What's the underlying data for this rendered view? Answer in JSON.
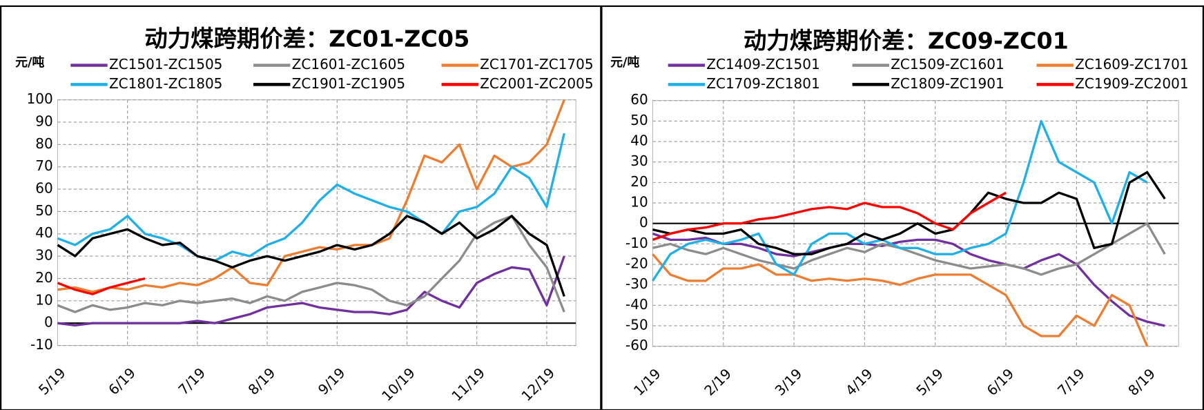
{
  "chart_data": [
    {
      "type": "line",
      "title": "动力煤跨期价差：ZC01-ZC05",
      "y_label": "元/吨",
      "legend": "top",
      "x": [
        "5/19",
        null,
        null,
        null,
        "6/19",
        null,
        null,
        null,
        "7/19",
        null,
        null,
        null,
        "8/19",
        null,
        null,
        null,
        "9/19",
        null,
        null,
        null,
        "10/19",
        null,
        null,
        null,
        "11/19",
        null,
        null,
        null,
        "12/19",
        null
      ],
      "ylim": [
        -10,
        100
      ],
      "yticks": [
        -10,
        0,
        10,
        20,
        30,
        40,
        50,
        60,
        70,
        80,
        90,
        100
      ],
      "grid": true,
      "series": [
        {
          "name": "ZC1501-ZC1505",
          "color": "#7030a0",
          "values": [
            0,
            -1,
            0,
            0,
            0,
            0,
            0,
            0,
            1,
            0,
            2,
            4,
            7,
            8,
            9,
            7,
            6,
            5,
            5,
            4,
            6,
            14,
            10,
            7,
            18,
            22,
            25,
            24,
            8,
            30
          ]
        },
        {
          "name": "ZC1601-ZC1605",
          "color": "#8c8c8c",
          "values": [
            8,
            5,
            8,
            6,
            7,
            9,
            8,
            10,
            9,
            10,
            11,
            9,
            12,
            10,
            14,
            16,
            18,
            17,
            15,
            10,
            8,
            12,
            20,
            28,
            40,
            45,
            48,
            35,
            25,
            5
          ]
        },
        {
          "name": "ZC1701-ZC1705",
          "color": "#ed7d31",
          "values": [
            15,
            16,
            14,
            16,
            15,
            17,
            16,
            18,
            17,
            20,
            25,
            18,
            17,
            30,
            32,
            34,
            33,
            35,
            35,
            38,
            55,
            75,
            72,
            80,
            60,
            75,
            70,
            72,
            80,
            100
          ]
        },
        {
          "name": "ZC1801-ZC1805",
          "color": "#1fb0e8",
          "values": [
            38,
            35,
            40,
            42,
            48,
            40,
            38,
            35,
            30,
            28,
            32,
            30,
            35,
            38,
            45,
            55,
            62,
            58,
            55,
            52,
            50,
            45,
            40,
            50,
            52,
            58,
            70,
            65,
            52,
            85
          ]
        },
        {
          "name": "ZC1901-ZC1905",
          "color": "#000000",
          "values": [
            35,
            30,
            38,
            40,
            42,
            38,
            35,
            36,
            30,
            28,
            25,
            28,
            30,
            28,
            30,
            32,
            35,
            33,
            35,
            40,
            48,
            45,
            40,
            45,
            38,
            42,
            48,
            40,
            35,
            12
          ]
        },
        {
          "name": "ZC2001-ZC2005",
          "color": "#ff0000",
          "values": [
            18,
            15,
            13,
            16,
            18,
            20,
            null,
            null,
            null,
            null,
            null,
            null,
            null,
            null,
            null,
            null,
            null,
            null,
            null,
            null,
            null,
            null,
            null,
            null,
            null,
            null,
            null,
            null,
            null,
            null
          ]
        }
      ]
    },
    {
      "type": "line",
      "title": "动力煤跨期价差：ZC09-ZC01",
      "y_label": "元/吨",
      "legend": "top",
      "x": [
        "1/19",
        null,
        null,
        null,
        "2/19",
        null,
        null,
        null,
        "3/19",
        null,
        null,
        null,
        "4/19",
        null,
        null,
        null,
        "5/19",
        null,
        null,
        null,
        "6/19",
        null,
        null,
        null,
        "7/19",
        null,
        null,
        null,
        "8/19",
        null
      ],
      "ylim": [
        -60,
        60
      ],
      "yticks": [
        -60,
        -50,
        -40,
        -30,
        -20,
        -10,
        0,
        10,
        20,
        30,
        40,
        50,
        60
      ],
      "grid": true,
      "series": [
        {
          "name": "ZC1409-ZC1501",
          "color": "#7030a0",
          "values": [
            -5,
            -8,
            -8,
            -7,
            -10,
            -10,
            -12,
            -15,
            -16,
            -14,
            -12,
            -10,
            -10,
            -11,
            -9,
            -8,
            -8,
            -10,
            -15,
            -18,
            -20,
            -22,
            -18,
            -15,
            -20,
            -30,
            -38,
            -45,
            -48,
            -50
          ]
        },
        {
          "name": "ZC1509-ZC1601",
          "color": "#8c8c8c",
          "values": [
            -12,
            -10,
            -13,
            -15,
            -12,
            -15,
            -18,
            -20,
            -22,
            -18,
            -15,
            -12,
            -14,
            -10,
            -12,
            -15,
            -18,
            -20,
            -22,
            -21,
            -20,
            -22,
            -25,
            -22,
            -20,
            -15,
            -10,
            -5,
            0,
            -15
          ]
        },
        {
          "name": "ZC1609-ZC1701",
          "color": "#ed7d31",
          "values": [
            -15,
            -25,
            -28,
            -28,
            -22,
            -22,
            -20,
            -25,
            -25,
            -28,
            -27,
            -28,
            -27,
            -28,
            -30,
            -27,
            -25,
            -25,
            -25,
            -30,
            -35,
            -50,
            -55,
            -55,
            -45,
            -50,
            -35,
            -40,
            -60,
            null
          ]
        },
        {
          "name": "ZC1709-ZC1801",
          "color": "#1fb0e8",
          "values": [
            -28,
            -15,
            -10,
            -8,
            -10,
            -8,
            -5,
            -20,
            -25,
            -10,
            -5,
            -5,
            -10,
            -8,
            -12,
            -12,
            -15,
            -15,
            -12,
            -10,
            -5,
            20,
            50,
            30,
            25,
            20,
            0,
            25,
            20,
            null
          ]
        },
        {
          "name": "ZC1809-ZC1901",
          "color": "#000000",
          "values": [
            -3,
            -5,
            -3,
            -5,
            -5,
            -3,
            -10,
            -12,
            -15,
            -15,
            -12,
            -10,
            -5,
            -8,
            -5,
            0,
            -5,
            -3,
            5,
            15,
            12,
            10,
            10,
            15,
            12,
            -12,
            -10,
            20,
            25,
            12
          ]
        },
        {
          "name": "ZC1909-ZC2001",
          "color": "#ff0000",
          "values": [
            -8,
            -5,
            -3,
            -2,
            0,
            0,
            2,
            3,
            5,
            7,
            8,
            7,
            10,
            8,
            8,
            5,
            0,
            -3,
            5,
            10,
            15,
            null,
            null,
            null,
            null,
            null,
            null,
            null,
            null,
            null
          ]
        }
      ]
    }
  ]
}
